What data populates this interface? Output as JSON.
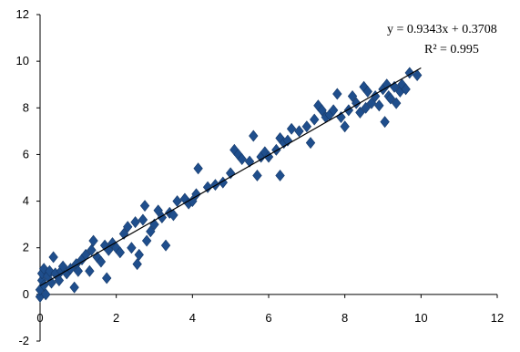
{
  "chart_data": {
    "type": "scatter",
    "xlim": [
      0,
      12
    ],
    "ylim": [
      -2,
      12
    ],
    "x_ticks": [
      0,
      2,
      4,
      6,
      8,
      10,
      12
    ],
    "y_ticks": [
      -2,
      0,
      2,
      4,
      6,
      8,
      10,
      12
    ],
    "grid": false,
    "marker_color": "#1f4e8c",
    "trendline": {
      "slope": 0.9343,
      "intercept": 0.3708,
      "x_range": [
        0,
        10
      ],
      "color": "#000000",
      "equation_label": "y = 0.9343x + 0.3708",
      "r2_label": "R² = 0.995"
    },
    "points": [
      [
        0.0,
        -0.1
      ],
      [
        0.0,
        0.2
      ],
      [
        0.05,
        0.6
      ],
      [
        0.05,
        0.9
      ],
      [
        0.1,
        1.1
      ],
      [
        0.1,
        0.4
      ],
      [
        0.15,
        0.0
      ],
      [
        0.2,
        0.8
      ],
      [
        0.25,
        1.0
      ],
      [
        0.3,
        0.5
      ],
      [
        0.35,
        1.6
      ],
      [
        0.4,
        0.9
      ],
      [
        0.5,
        0.6
      ],
      [
        0.55,
        1.0
      ],
      [
        0.6,
        1.2
      ],
      [
        0.7,
        0.9
      ],
      [
        0.8,
        1.1
      ],
      [
        0.9,
        0.3
      ],
      [
        0.95,
        1.3
      ],
      [
        1.0,
        1.0
      ],
      [
        1.1,
        1.5
      ],
      [
        1.2,
        1.7
      ],
      [
        1.3,
        1.0
      ],
      [
        1.35,
        1.9
      ],
      [
        1.4,
        2.3
      ],
      [
        1.5,
        1.6
      ],
      [
        1.6,
        1.4
      ],
      [
        1.7,
        2.1
      ],
      [
        1.75,
        0.7
      ],
      [
        1.8,
        1.9
      ],
      [
        1.9,
        2.2
      ],
      [
        2.0,
        2.0
      ],
      [
        2.1,
        1.8
      ],
      [
        2.2,
        2.6
      ],
      [
        2.3,
        2.9
      ],
      [
        2.4,
        2.0
      ],
      [
        2.5,
        3.1
      ],
      [
        2.55,
        1.3
      ],
      [
        2.6,
        1.7
      ],
      [
        2.7,
        3.2
      ],
      [
        2.75,
        3.8
      ],
      [
        2.8,
        2.3
      ],
      [
        2.9,
        2.7
      ],
      [
        3.0,
        3.0
      ],
      [
        3.1,
        3.6
      ],
      [
        3.2,
        3.3
      ],
      [
        3.3,
        2.1
      ],
      [
        3.4,
        3.5
      ],
      [
        3.5,
        3.4
      ],
      [
        3.6,
        4.0
      ],
      [
        3.8,
        4.1
      ],
      [
        3.9,
        3.9
      ],
      [
        4.0,
        4.0
      ],
      [
        4.1,
        4.3
      ],
      [
        4.15,
        5.4
      ],
      [
        4.4,
        4.6
      ],
      [
        4.6,
        4.7
      ],
      [
        4.8,
        4.8
      ],
      [
        5.0,
        5.2
      ],
      [
        5.1,
        6.2
      ],
      [
        5.2,
        6.0
      ],
      [
        5.3,
        5.8
      ],
      [
        5.5,
        5.7
      ],
      [
        5.6,
        6.8
      ],
      [
        5.7,
        5.1
      ],
      [
        5.8,
        5.9
      ],
      [
        5.9,
        6.1
      ],
      [
        6.0,
        5.9
      ],
      [
        6.2,
        6.2
      ],
      [
        6.3,
        5.1
      ],
      [
        6.3,
        6.7
      ],
      [
        6.4,
        6.5
      ],
      [
        6.5,
        6.6
      ],
      [
        6.6,
        7.1
      ],
      [
        6.8,
        7.0
      ],
      [
        7.0,
        7.2
      ],
      [
        7.1,
        6.5
      ],
      [
        7.2,
        7.5
      ],
      [
        7.3,
        8.1
      ],
      [
        7.4,
        7.9
      ],
      [
        7.5,
        7.6
      ],
      [
        7.6,
        7.7
      ],
      [
        7.7,
        7.9
      ],
      [
        7.8,
        8.6
      ],
      [
        7.9,
        7.6
      ],
      [
        8.0,
        7.2
      ],
      [
        8.1,
        7.9
      ],
      [
        8.2,
        8.5
      ],
      [
        8.3,
        8.2
      ],
      [
        8.4,
        7.8
      ],
      [
        8.5,
        8.9
      ],
      [
        8.55,
        8.0
      ],
      [
        8.6,
        8.7
      ],
      [
        8.7,
        8.2
      ],
      [
        8.8,
        8.5
      ],
      [
        8.9,
        8.1
      ],
      [
        9.0,
        8.8
      ],
      [
        9.05,
        7.4
      ],
      [
        9.1,
        9.0
      ],
      [
        9.15,
        8.5
      ],
      [
        9.2,
        8.4
      ],
      [
        9.3,
        8.9
      ],
      [
        9.35,
        8.2
      ],
      [
        9.45,
        8.7
      ],
      [
        9.5,
        9.0
      ],
      [
        9.6,
        8.8
      ],
      [
        9.7,
        9.5
      ],
      [
        9.9,
        9.4
      ]
    ]
  }
}
